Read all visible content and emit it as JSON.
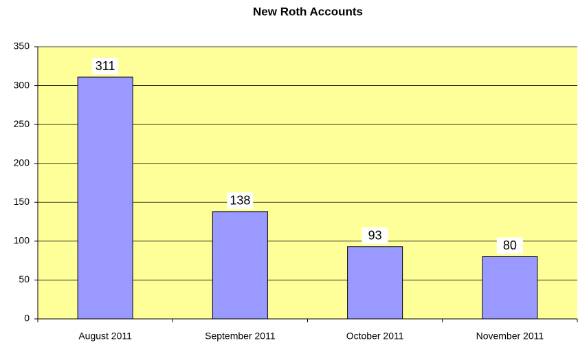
{
  "chart_data": {
    "type": "bar",
    "title": "New Roth Accounts",
    "categories": [
      "August 2011",
      "September 2011",
      "October 2011",
      "November 2011"
    ],
    "values": [
      311,
      138,
      93,
      80
    ],
    "color": "#9999ff",
    "background": "#ffff99",
    "ylim": [
      0,
      350
    ],
    "yticks": [
      0,
      50,
      100,
      150,
      200,
      250,
      300,
      350
    ],
    "grid": true
  }
}
